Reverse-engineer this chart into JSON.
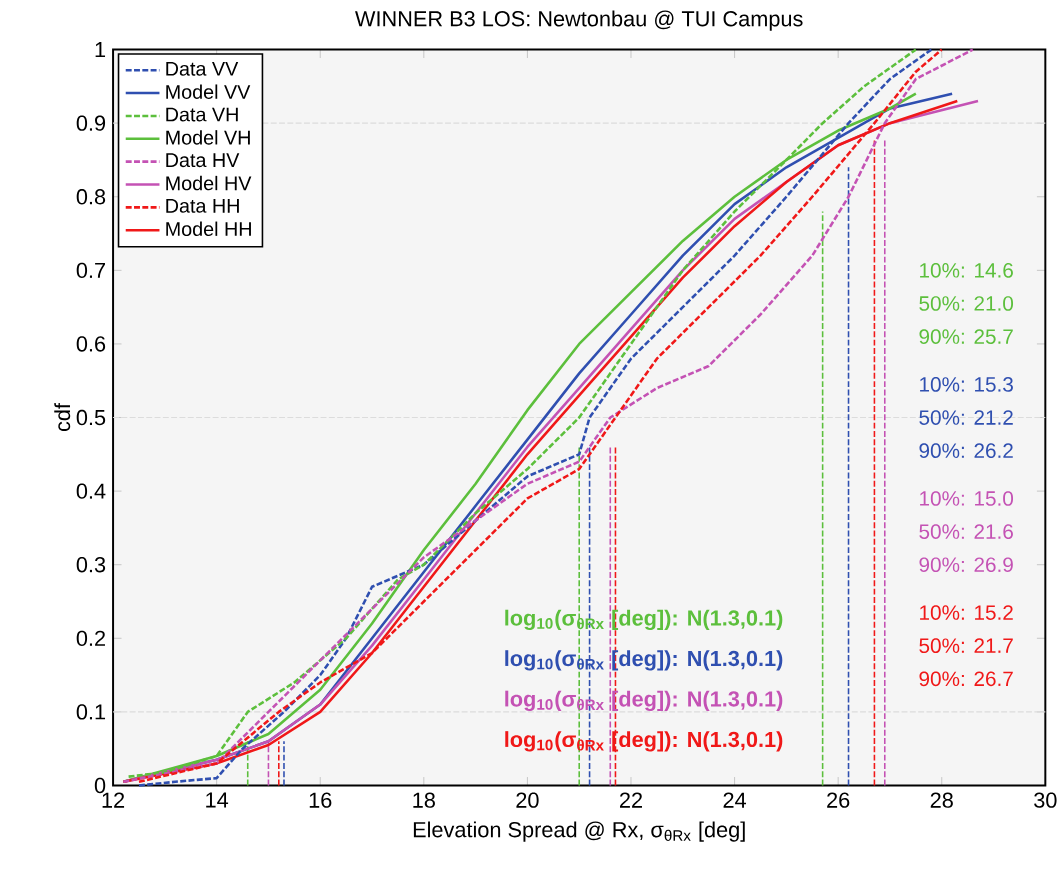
{
  "chart_data": {
    "type": "line",
    "title": "WINNER B3 LOS: Newtonbau @ TUI Campus",
    "xlabel": "Elevation Spread @ Rx, σ$_{θRx}$ [deg]",
    "ylabel": "cdf",
    "xlim": [
      12,
      30
    ],
    "xticks": [
      12,
      14,
      16,
      18,
      20,
      22,
      24,
      26,
      28,
      30
    ],
    "ylim": [
      0,
      1
    ],
    "yticks": [
      0,
      0.1,
      0.2,
      0.3,
      0.4,
      0.5,
      0.6,
      0.7,
      0.8,
      0.9,
      1
    ],
    "legend": "top left",
    "grid": false,
    "marker": "none",
    "series": [
      {
        "name": "Data VV",
        "color": "#2f4fb0",
        "line_style": "dashed",
        "x": [
          12.5,
          13.2,
          14,
          14.5,
          15.3,
          16,
          16.5,
          17,
          18,
          19,
          20,
          21,
          21.2,
          22,
          23,
          24,
          25,
          26.2,
          27,
          27.8
        ],
        "values": [
          0.0,
          0.005,
          0.01,
          0.05,
          0.1,
          0.15,
          0.2,
          0.27,
          0.3,
          0.36,
          0.42,
          0.45,
          0.5,
          0.58,
          0.65,
          0.72,
          0.8,
          0.9,
          0.96,
          1.0
        ]
      },
      {
        "name": "Model VV",
        "color": "#2f4fb0",
        "line_style": "solid",
        "x": [
          12.2,
          14,
          15,
          16,
          17,
          18,
          19,
          20,
          21,
          22,
          23,
          24,
          25,
          26,
          27,
          28.2
        ],
        "values": [
          0.005,
          0.035,
          0.06,
          0.11,
          0.2,
          0.29,
          0.38,
          0.47,
          0.56,
          0.64,
          0.72,
          0.79,
          0.84,
          0.88,
          0.92,
          0.94
        ]
      },
      {
        "name": "Data VH",
        "color": "#5cbf3c",
        "line_style": "dashed",
        "x": [
          12.3,
          13,
          14,
          14.6,
          15.5,
          16.5,
          17.5,
          18,
          19,
          20,
          21,
          22,
          23,
          24,
          25,
          25.7,
          26.5,
          27.5
        ],
        "values": [
          0.012,
          0.018,
          0.04,
          0.1,
          0.14,
          0.2,
          0.28,
          0.3,
          0.37,
          0.43,
          0.5,
          0.6,
          0.7,
          0.78,
          0.85,
          0.9,
          0.95,
          1.0
        ]
      },
      {
        "name": "Model VH",
        "color": "#5cbf3c",
        "line_style": "solid",
        "x": [
          12.2,
          14,
          15,
          16,
          17,
          18,
          19,
          20,
          21,
          22,
          23,
          24,
          25,
          26,
          27,
          27.5
        ],
        "values": [
          0.005,
          0.04,
          0.07,
          0.13,
          0.22,
          0.32,
          0.41,
          0.51,
          0.6,
          0.67,
          0.74,
          0.8,
          0.85,
          0.89,
          0.92,
          0.94
        ]
      },
      {
        "name": "Data HV",
        "color": "#c452b4",
        "line_style": "dashed",
        "x": [
          12.2,
          14,
          15,
          16,
          17,
          18,
          19,
          20,
          21,
          21.6,
          22.5,
          23.5,
          24.5,
          25.5,
          26.2,
          26.9,
          27.5,
          28.6
        ],
        "values": [
          0.005,
          0.03,
          0.1,
          0.17,
          0.24,
          0.31,
          0.36,
          0.41,
          0.44,
          0.5,
          0.54,
          0.57,
          0.64,
          0.72,
          0.8,
          0.9,
          0.96,
          1.0
        ]
      },
      {
        "name": "Model HV",
        "color": "#c452b4",
        "line_style": "solid",
        "x": [
          12.2,
          14,
          15,
          16,
          17,
          18,
          19,
          20,
          21,
          22,
          23,
          24,
          25,
          26,
          27,
          28.7
        ],
        "values": [
          0.005,
          0.035,
          0.06,
          0.11,
          0.19,
          0.28,
          0.37,
          0.46,
          0.54,
          0.62,
          0.7,
          0.77,
          0.82,
          0.87,
          0.9,
          0.93
        ]
      },
      {
        "name": "Data HH",
        "color": "#f01818",
        "line_style": "dashed",
        "x": [
          12.5,
          14,
          15.2,
          16,
          17,
          18,
          19,
          20,
          21,
          21.7,
          22.5,
          23.5,
          24.5,
          25.5,
          26.7,
          27.5,
          28
        ],
        "values": [
          0.005,
          0.03,
          0.1,
          0.14,
          0.18,
          0.25,
          0.32,
          0.39,
          0.43,
          0.5,
          0.58,
          0.65,
          0.72,
          0.8,
          0.9,
          0.97,
          1.0
        ]
      },
      {
        "name": "Model HH",
        "color": "#f01818",
        "line_style": "solid",
        "x": [
          12.2,
          14,
          15,
          16,
          17,
          18,
          19,
          20,
          21,
          22,
          23,
          24,
          25,
          26,
          27,
          28.3
        ],
        "values": [
          0.005,
          0.03,
          0.055,
          0.1,
          0.18,
          0.27,
          0.36,
          0.45,
          0.53,
          0.61,
          0.69,
          0.76,
          0.82,
          0.87,
          0.9,
          0.93
        ]
      },
      {
        "color": "#5cbf3c",
        "line_style": "dashed",
        "x": [
          14.6,
          14.6
        ],
        "values": [
          0,
          0.06
        ]
      },
      {
        "color": "#5cbf3c",
        "line_style": "dashed",
        "x": [
          21.0,
          21.0
        ],
        "values": [
          0,
          0.46
        ]
      },
      {
        "color": "#5cbf3c",
        "line_style": "dashed",
        "x": [
          25.7,
          25.7
        ],
        "values": [
          0,
          0.78
        ]
      },
      {
        "color": "#2f4fb0",
        "line_style": "dashed",
        "x": [
          15.3,
          15.3
        ],
        "values": [
          0,
          0.06
        ]
      },
      {
        "color": "#2f4fb0",
        "line_style": "dashed",
        "x": [
          21.2,
          21.2
        ],
        "values": [
          0,
          0.46
        ]
      },
      {
        "color": "#2f4fb0",
        "line_style": "dashed",
        "x": [
          26.2,
          26.2
        ],
        "values": [
          0,
          0.84
        ]
      },
      {
        "color": "#c452b4",
        "line_style": "dashed",
        "x": [
          15.0,
          15.0
        ],
        "values": [
          0,
          0.06
        ]
      },
      {
        "color": "#c452b4",
        "line_style": "dashed",
        "x": [
          21.6,
          21.6
        ],
        "values": [
          0,
          0.46
        ]
      },
      {
        "color": "#c452b4",
        "line_style": "dashed",
        "x": [
          26.9,
          26.9
        ],
        "values": [
          0,
          0.88
        ]
      },
      {
        "color": "#f01818",
        "line_style": "dashed",
        "x": [
          15.2,
          15.2
        ],
        "values": [
          0,
          0.06
        ]
      },
      {
        "color": "#f01818",
        "line_style": "dashed",
        "x": [
          21.7,
          21.7
        ],
        "values": [
          0,
          0.46
        ]
      },
      {
        "color": "#f01818",
        "line_style": "dashed",
        "x": [
          26.7,
          26.7
        ],
        "values": [
          0,
          0.88
        ]
      }
    ],
    "ref_lines": [
      {
        "axis": "y",
        "value": 0.1,
        "color": "#dcdcdc",
        "line_style": "dashed"
      },
      {
        "axis": "y",
        "value": 0.5,
        "color": "#dcdcdc",
        "line_style": "dashed"
      },
      {
        "axis": "y",
        "value": 0.9,
        "color": "#dcdcdc",
        "line_style": "dashed"
      }
    ],
    "annotations": [
      "10%: 14.6",
      "50%: 21.0",
      "90%: 25.7",
      "10%: 15.3",
      "50%: 21.2",
      "90%: 26.2",
      "10%: 15.0",
      "50%: 21.6",
      "90%: 26.9",
      "10%: 15.2",
      "50%: 21.7",
      "90%: 26.7",
      "log$_{10}$(σ$_{θRx}$ [deg]): N(1.3,0.1)",
      "log$_{10}$(σ$_{θRx}$ [deg]): N(1.3,0.1)",
      "log$_{10}$(σ$_{θRx}$ [deg]): N(1.3,0.1)",
      "log$_{10}$(σ$_{θRx}$ [deg]): N(1.3,0.1)"
    ]
  }
}
